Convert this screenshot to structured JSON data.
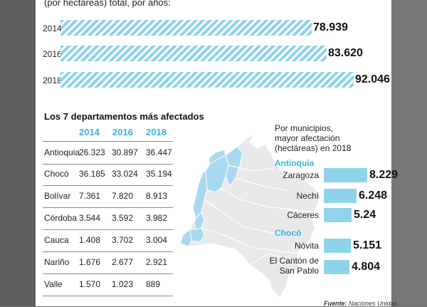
{
  "colors": {
    "accent": "#3ab3d8",
    "bar_fill": "#8fd3ea",
    "map_fill": "#e9e9eb",
    "map_highlight": "#a9d9f0"
  },
  "header": {
    "caption_line1": "(por hectáreas) total, por años:"
  },
  "chart_data": [
    {
      "type": "bar",
      "orientation": "horizontal",
      "categories": [
        "2014",
        "2016",
        "2018"
      ],
      "values": [
        78939,
        83620,
        92046
      ],
      "value_labels": [
        "78.939",
        "83.620",
        "92.046"
      ],
      "title": "(por hectáreas) total, por años:",
      "xlim": [
        0,
        92046
      ]
    },
    {
      "type": "table",
      "title": "Los 7 departamentos más afectados",
      "columns": [
        "2014",
        "2016",
        "2018"
      ],
      "rows": [
        {
          "name": "Antioquia",
          "values": [
            "26.323",
            "30.897",
            "36.447"
          ]
        },
        {
          "name": "Chocó",
          "values": [
            "36.185",
            "33.024",
            "35.194"
          ]
        },
        {
          "name": "Bolívar",
          "values": [
            "7.361",
            "7.820",
            "8.913"
          ]
        },
        {
          "name": "Córdoba",
          "values": [
            "3.544",
            "3.592",
            "3.982"
          ]
        },
        {
          "name": "Cauca",
          "values": [
            "1.408",
            "3.702",
            "3.004"
          ]
        },
        {
          "name": "Nariño",
          "values": [
            "1.676",
            "2.677",
            "2.921"
          ]
        },
        {
          "name": "Valle",
          "values": [
            "1.570",
            "1.023",
            "889"
          ]
        }
      ]
    },
    {
      "type": "bar",
      "orientation": "horizontal",
      "title_lines": [
        "Por municipios,",
        "mayor afectación",
        "(hectáreas) en 2018"
      ],
      "groups": [
        {
          "name": "Antioquia",
          "items": [
            {
              "name": "Zaragoza",
              "value": 8229,
              "label": "8.229"
            },
            {
              "name": "Nechí",
              "value": 6248,
              "label": "6.248"
            },
            {
              "name": "Cáceres",
              "value": 5240,
              "label": "5.24"
            }
          ]
        },
        {
          "name": "Chocó",
          "items": [
            {
              "name": "Nóvita",
              "value": 5151,
              "label": "5.151"
            },
            {
              "name": "El Cantón de San Pablo",
              "value": 4804,
              "label": "4.804"
            }
          ]
        }
      ],
      "xlim": [
        0,
        8229
      ]
    }
  ],
  "source": {
    "label": "Fuente:",
    "text": "Naciones Unidas"
  }
}
